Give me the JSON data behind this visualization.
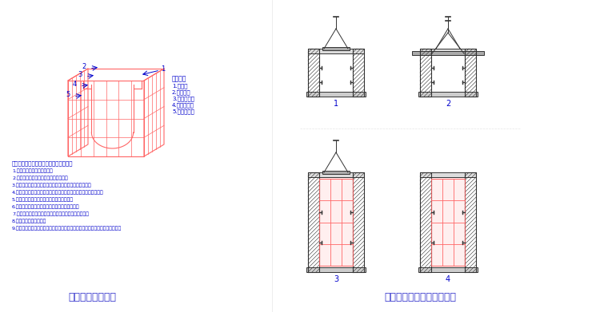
{
  "bg_color": "#ffffff",
  "title_left": "电梯井筒模示意图",
  "title_right": "电梯井移动操作平台示意图",
  "title_color": "#3333cc",
  "title_fontsize": 9,
  "draw_color_red": "#FF6666",
  "draw_color_dark": "#333333",
  "draw_color_blue": "#0000CC",
  "legend_items": [
    "图示说明",
    "1.面积套",
    "2.三角铁链",
    "3.方钢截止管",
    "4.方钢截止管",
    "5.铺木底分模"
  ],
  "text_steps": [
    "电梯井操作平台及荣模配前使用工艺步骤",
    "1.现场组装荣模呈拆开状态；",
    "2.收拢荣模四角，削掉模刨，准备吊运；",
    "3.通过预埋孔吊运组运电梯井操作平台，调干高度及水平；",
    "4.转孔墙体锁固，支模板，插入穿墙螺栓，预留预埋孔，移入荣模；",
    "5.张开荣模四角，上至穿墙螺检，混液涂休；",
    "6.拆除海部，收拿荣模四角，使荣模脱离纸墙体；",
    "7.沟模吊高两角，途塑荣模，削掉模刨，准备折尺吊运；",
    "8.起移电梯井操作平台；",
    "9.电梯井操作平台支撑自动弹入预留孔，调节平台高度及水平，进入下一层施工。"
  ],
  "panel_labels": [
    "1",
    "2",
    "3",
    "4"
  ]
}
